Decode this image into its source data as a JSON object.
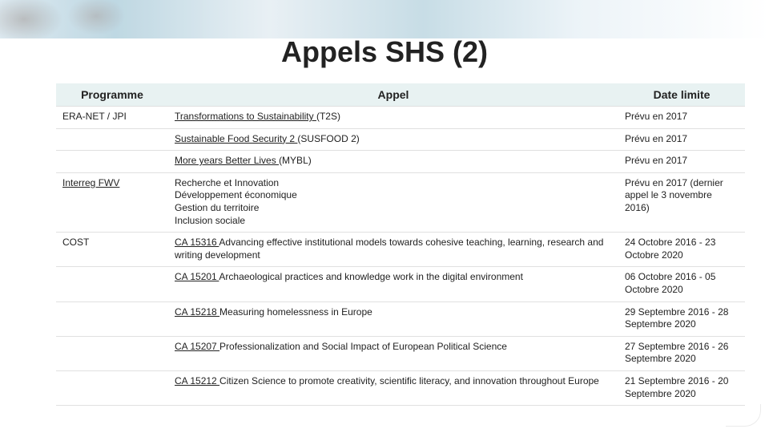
{
  "title": "Appels SHS (2)",
  "headers": {
    "programme": "Programme",
    "appel": "Appel",
    "date": "Date limite"
  },
  "header_bg": "#e8f2f2",
  "row_border": "#e0e0e0",
  "rows": [
    {
      "programme": "ERA-NET / JPI",
      "programme_link": false,
      "appel_link": "Transformations to Sustainability ",
      "appel_after": "(T2S)",
      "appel_multiline": null,
      "date": "Prévu en 2017"
    },
    {
      "programme": "",
      "programme_link": false,
      "appel_link": "Sustainable Food Security 2 ",
      "appel_after": "(SUSFOOD 2)",
      "appel_multiline": null,
      "date": "Prévu en 2017"
    },
    {
      "programme": "",
      "programme_link": false,
      "appel_link": "More years Better Lives ",
      "appel_after": "(MYBL)",
      "appel_multiline": null,
      "date": "Prévu en 2017"
    },
    {
      "programme": "Interreg FWV",
      "programme_link": true,
      "appel_link": null,
      "appel_after": null,
      "appel_multiline": [
        "Recherche et Innovation",
        "Développement économique",
        "Gestion du territoire",
        "Inclusion sociale"
      ],
      "date": "Prévu en 2017 (dernier appel le 3 novembre 2016)"
    },
    {
      "programme": "COST",
      "programme_link": false,
      "appel_link": "CA 15316 ",
      "appel_after": "Advancing effective institutional models towards cohesive teaching, learning, research and writing development",
      "appel_multiline": null,
      "date": "24 Octobre 2016 - 23 Octobre 2020"
    },
    {
      "programme": "",
      "programme_link": false,
      "appel_link": "CA 15201 ",
      "appel_after": "Archaeological practices and knowledge work in the digital environment",
      "appel_multiline": null,
      "date": "06 Octobre 2016 - 05 Octobre 2020"
    },
    {
      "programme": "",
      "programme_link": false,
      "appel_link": "CA 15218 ",
      "appel_after": "Measuring homelessness in Europe",
      "appel_multiline": null,
      "date": "29 Septembre 2016 - 28 Septembre 2020"
    },
    {
      "programme": "",
      "programme_link": false,
      "appel_link": "CA 15207 ",
      "appel_after": "Professionalization and Social Impact of European Political Science",
      "appel_multiline": null,
      "date": "27 Septembre 2016 - 26 Septembre 2020"
    },
    {
      "programme": "",
      "programme_link": false,
      "appel_link": "CA 15212 ",
      "appel_after": "Citizen Science to promote creativity, scientific literacy, and innovation throughout Europe",
      "appel_multiline": null,
      "date": "21 Septembre 2016 - 20 Septembre 2020"
    }
  ]
}
